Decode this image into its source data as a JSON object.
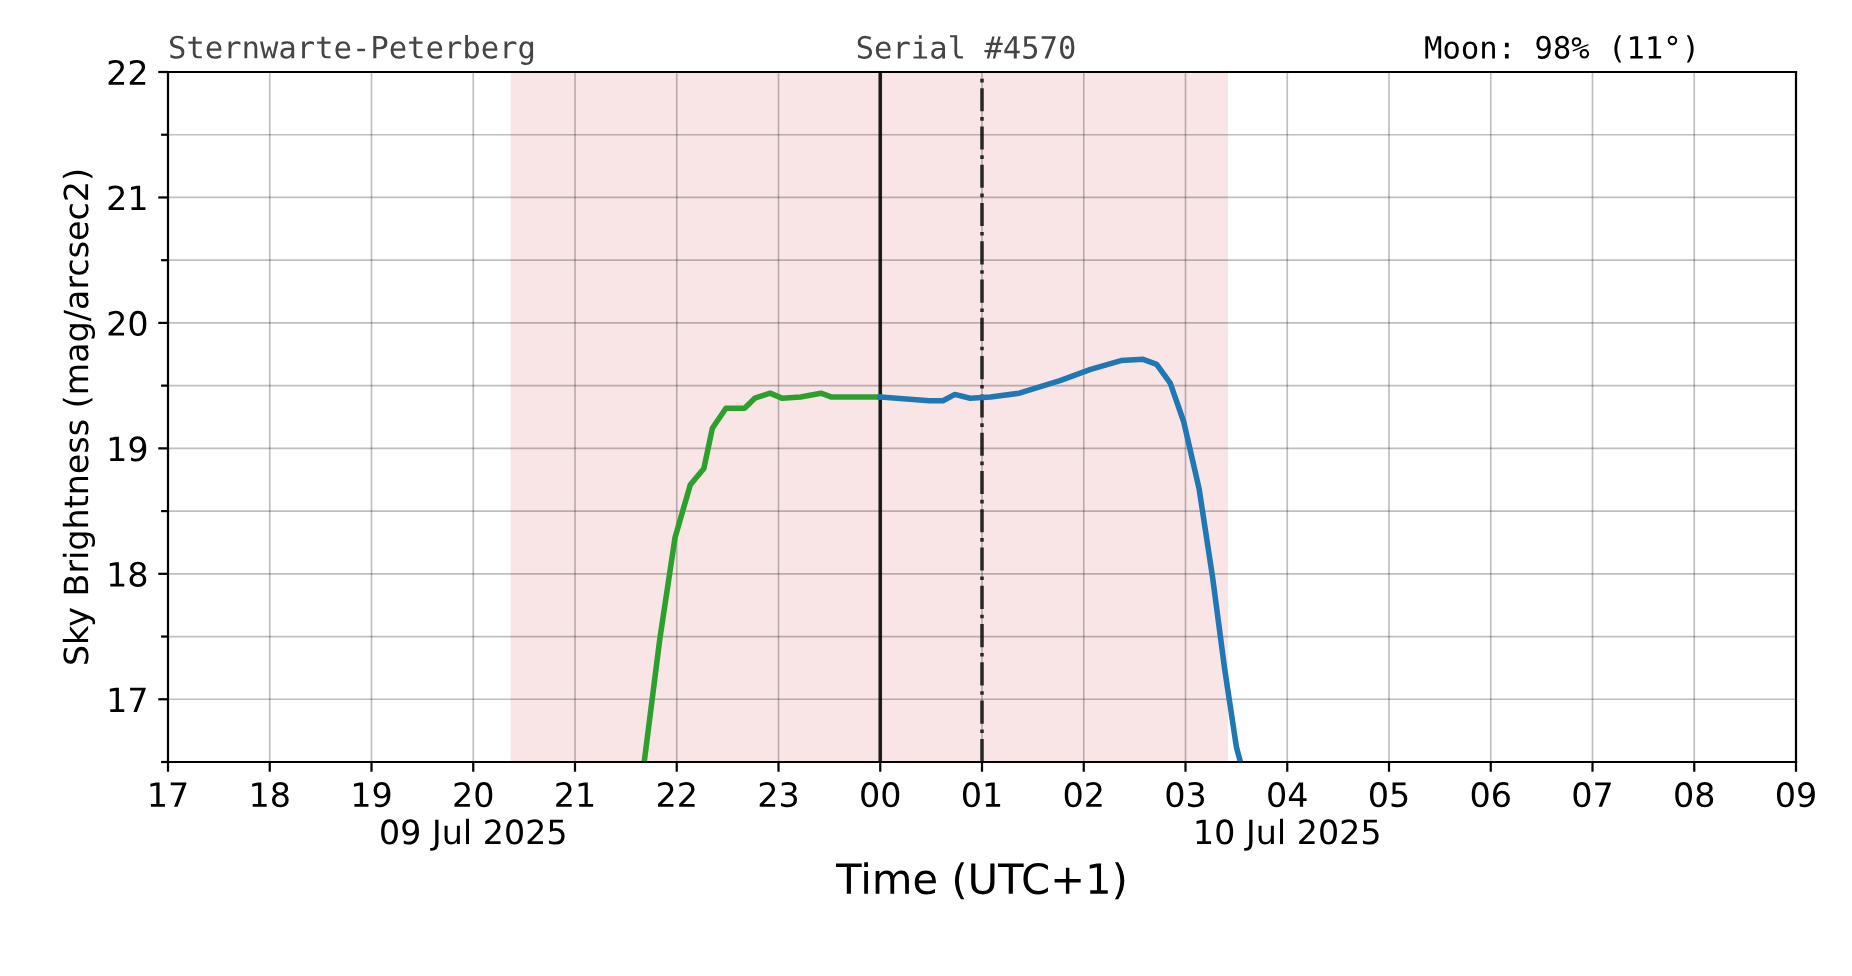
{
  "chart_data": {
    "type": "line",
    "xlabel": "Time (UTC+1)",
    "ylabel": "Sky Brightness (mag/arcsec2)",
    "annotations": [
      "Sternwarte-Peterberg",
      "Serial #4570",
      "Moon: 98% (11°)"
    ],
    "xlim": [
      "2025-07-09T17:00",
      "2025-07-10T09:00"
    ],
    "ylim": [
      16.5,
      22
    ],
    "xticks": [
      {
        "value": "2025-07-09T17:00",
        "label": "17"
      },
      {
        "value": "2025-07-09T18:00",
        "label": "18"
      },
      {
        "value": "2025-07-09T19:00",
        "label": "19"
      },
      {
        "value": "2025-07-09T20:00",
        "label": "20\n09 Jul 2025"
      },
      {
        "value": "2025-07-09T21:00",
        "label": "21"
      },
      {
        "value": "2025-07-09T22:00",
        "label": "22"
      },
      {
        "value": "2025-07-09T23:00",
        "label": "23"
      },
      {
        "value": "2025-07-10T00:00",
        "label": "00"
      },
      {
        "value": "2025-07-10T01:00",
        "label": "01"
      },
      {
        "value": "2025-07-10T02:00",
        "label": "02"
      },
      {
        "value": "2025-07-10T03:00",
        "label": "03"
      },
      {
        "value": "2025-07-10T04:00",
        "label": "04\n10 Jul 2025"
      },
      {
        "value": "2025-07-10T05:00",
        "label": "05"
      },
      {
        "value": "2025-07-10T06:00",
        "label": "06"
      },
      {
        "value": "2025-07-10T07:00",
        "label": "07"
      },
      {
        "value": "2025-07-10T08:00",
        "label": "08"
      },
      {
        "value": "2025-07-10T09:00",
        "label": "09"
      }
    ],
    "yticks": [
      {
        "value": 16.5,
        "label": null
      },
      17,
      {
        "value": 17.5,
        "label": null
      },
      18,
      {
        "value": 18.5,
        "label": null
      },
      19,
      {
        "value": 19.5,
        "label": null
      },
      20,
      {
        "value": 20.5,
        "label": null
      },
      21,
      {
        "value": 21.5,
        "label": null
      },
      22
    ],
    "grid": true,
    "line_style": "solid",
    "marker": "none",
    "bands": [
      {
        "axis": "x",
        "from": "2025-07-09T20:22",
        "to": "2025-07-10T03:25",
        "color": "#f9e5e5"
      }
    ],
    "ref_lines": [
      {
        "axis": "x",
        "value": "2025-07-10T00:00",
        "color": "#222222",
        "line_style": "solid"
      },
      {
        "axis": "x",
        "value": "2025-07-10T01:00",
        "color": "#333333",
        "line_style": "dashdot"
      }
    ],
    "series": [
      {
        "color": "#2ca02c",
        "x": [
          "2025-07-09T21:41",
          "2025-07-09T21:50",
          "2025-07-09T21:59",
          "2025-07-09T22:08",
          "2025-07-09T22:16",
          "2025-07-09T22:21",
          "2025-07-09T22:29",
          "2025-07-09T22:40",
          "2025-07-09T22:46",
          "2025-07-09T22:55",
          "2025-07-09T23:02",
          "2025-07-09T23:13",
          "2025-07-09T23:25",
          "2025-07-09T23:31",
          "2025-07-09T23:48",
          "2025-07-10T00:00"
        ],
        "values": [
          16.52,
          17.48,
          18.29,
          18.71,
          18.84,
          19.16,
          19.32,
          19.32,
          19.4,
          19.44,
          19.4,
          19.41,
          19.44,
          19.41,
          19.41,
          19.41
        ]
      },
      {
        "color": "#1f77b4",
        "x": [
          "2025-07-10T00:00",
          "2025-07-10T00:29",
          "2025-07-10T00:37",
          "2025-07-10T00:44",
          "2025-07-10T00:53",
          "2025-07-10T01:05",
          "2025-07-10T01:22",
          "2025-07-10T01:46",
          "2025-07-10T02:04",
          "2025-07-10T02:22",
          "2025-07-10T02:35",
          "2025-07-10T02:43",
          "2025-07-10T02:51",
          "2025-07-10T02:59",
          "2025-07-10T03:08",
          "2025-07-10T03:16",
          "2025-07-10T03:23",
          "2025-07-10T03:30",
          "2025-07-10T03:32"
        ],
        "values": [
          19.41,
          19.38,
          19.38,
          19.43,
          19.4,
          19.41,
          19.44,
          19.54,
          19.63,
          19.7,
          19.71,
          19.67,
          19.52,
          19.21,
          18.68,
          17.97,
          17.25,
          16.62,
          16.52
        ]
      }
    ]
  }
}
